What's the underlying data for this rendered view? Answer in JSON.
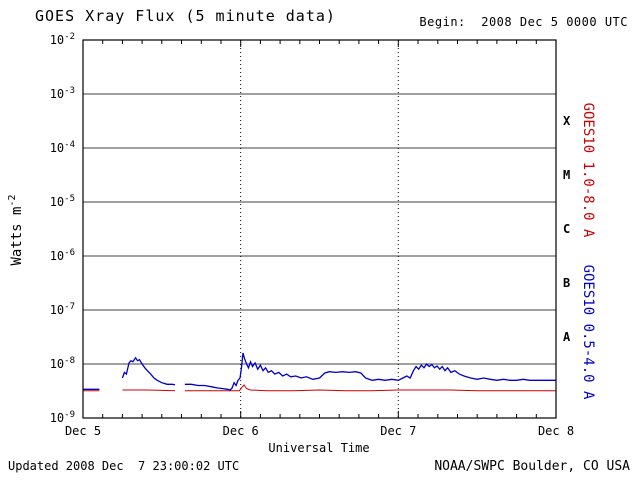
{
  "footer": {
    "updated": "Updated 2008 Dec  7 23:00:02 UTC",
    "credit": "NOAA/SWPC Boulder, CO USA"
  },
  "chart_data": {
    "type": "line",
    "title": "GOES Xray Flux (5 minute data)",
    "begin_label": "Begin:  2008 Dec 5 0000 UTC",
    "xlabel": "Universal Time",
    "ylabel": "Watts m^-2",
    "ylabel_base": "Watts m",
    "ylabel_exp": "-2",
    "x_unit": "hours since 2008 Dec 5 0000 UTC",
    "xlim": [
      0,
      72
    ],
    "ylim": [
      1e-09,
      0.01
    ],
    "y_scale": "log",
    "x_ticks": [
      {
        "hour": 0,
        "label": "Dec 5"
      },
      {
        "hour": 24,
        "label": "Dec 6"
      },
      {
        "hour": 48,
        "label": "Dec 7"
      },
      {
        "hour": 72,
        "label": "Dec 8"
      }
    ],
    "x_minor_tick_hours": 3,
    "y_ticks": [
      {
        "value": 0.01,
        "base": "10",
        "exp": "-2",
        "label": "10^-2"
      },
      {
        "value": 0.001,
        "base": "10",
        "exp": "-3",
        "label": "10^-3"
      },
      {
        "value": 0.0001,
        "base": "10",
        "exp": "-4",
        "label": "10^-4"
      },
      {
        "value": 1e-05,
        "base": "10",
        "exp": "-5",
        "label": "10^-5"
      },
      {
        "value": 1e-06,
        "base": "10",
        "exp": "-6",
        "label": "10^-6"
      },
      {
        "value": 1e-07,
        "base": "10",
        "exp": "-7",
        "label": "10^-7"
      },
      {
        "value": 1e-08,
        "base": "10",
        "exp": "-8",
        "label": "10^-8"
      },
      {
        "value": 1e-09,
        "base": "10",
        "exp": "-9",
        "label": "10^-9"
      }
    ],
    "gridlines_y": [
      0.001,
      0.0001,
      1e-05,
      1e-06,
      1e-07,
      1e-08
    ],
    "gridlines_x_dotted": [
      24,
      48
    ],
    "flare_classes": [
      {
        "label": "X",
        "value": 0.000316
      },
      {
        "label": "M",
        "value": 3.16e-05
      },
      {
        "label": "C",
        "value": 3.16e-06
      },
      {
        "label": "B",
        "value": 3.16e-07
      },
      {
        "label": "A",
        "value": 3.16e-08
      }
    ],
    "series": [
      {
        "name": "GOES10 1.0-8.0 A",
        "color": "#cc0000",
        "segments": [
          [
            [
              0,
              3.2e-09
            ],
            [
              2.5,
              3.2e-09
            ]
          ],
          [
            [
              6,
              3.3e-09
            ],
            [
              10,
              3.3e-09
            ],
            [
              14,
              3.2e-09
            ]
          ],
          [
            [
              15.5,
              3.2e-09
            ],
            [
              20,
              3.2e-09
            ],
            [
              23.8,
              3.2e-09
            ],
            [
              24.2,
              3.7e-09
            ],
            [
              24.5,
              4.1e-09
            ],
            [
              24.9,
              3.5e-09
            ],
            [
              25.5,
              3.3e-09
            ],
            [
              28,
              3.2e-09
            ],
            [
              32,
              3.2e-09
            ],
            [
              36,
              3.3e-09
            ],
            [
              40,
              3.2e-09
            ],
            [
              44,
              3.2e-09
            ],
            [
              48,
              3.3e-09
            ],
            [
              52,
              3.3e-09
            ],
            [
              56,
              3.3e-09
            ],
            [
              60,
              3.2e-09
            ],
            [
              64,
              3.2e-09
            ],
            [
              68,
              3.2e-09
            ],
            [
              72,
              3.2e-09
            ]
          ]
        ]
      },
      {
        "name": "GOES10 0.5-4.0 A",
        "color": "#0000cc",
        "segments": [
          [
            [
              0,
              3.4e-09
            ],
            [
              2.5,
              3.4e-09
            ]
          ],
          [
            [
              6,
              5.5e-09
            ],
            [
              6.3,
              7e-09
            ],
            [
              6.6,
              6.5e-09
            ],
            [
              7.0,
              1.05e-08
            ],
            [
              7.3,
              1.15e-08
            ],
            [
              7.6,
              1.1e-08
            ],
            [
              8.0,
              1.3e-08
            ],
            [
              8.3,
              1.15e-08
            ],
            [
              8.6,
              1.2e-08
            ],
            [
              9.0,
              1e-08
            ],
            [
              9.4,
              8.5e-09
            ],
            [
              9.8,
              7.5e-09
            ],
            [
              10.3,
              6.5e-09
            ],
            [
              10.8,
              5.5e-09
            ],
            [
              11.3,
              5e-09
            ],
            [
              12,
              4.5e-09
            ],
            [
              12.8,
              4.2e-09
            ],
            [
              13.6,
              4.2e-09
            ],
            [
              14,
              4.1e-09
            ]
          ],
          [
            [
              15.5,
              4.2e-09
            ],
            [
              16.5,
              4.2e-09
            ],
            [
              17.5,
              4e-09
            ],
            [
              18.5,
              4e-09
            ],
            [
              19.5,
              3.8e-09
            ],
            [
              20.5,
              3.6e-09
            ],
            [
              21.3,
              3.5e-09
            ],
            [
              22.0,
              3.4e-09
            ],
            [
              22.4,
              3.3e-09
            ],
            [
              22.7,
              3.6e-09
            ],
            [
              23.0,
              4.5e-09
            ],
            [
              23.3,
              4e-09
            ],
            [
              23.6,
              5e-09
            ],
            [
              23.9,
              5.5e-09
            ],
            [
              24.1,
              8e-09
            ],
            [
              24.35,
              1.6e-08
            ],
            [
              24.6,
              1.25e-08
            ],
            [
              24.9,
              1e-08
            ],
            [
              25.2,
              8.5e-09
            ],
            [
              25.5,
              1.1e-08
            ],
            [
              25.8,
              9e-09
            ],
            [
              26.2,
              1.05e-08
            ],
            [
              26.6,
              8e-09
            ],
            [
              27.0,
              9.5e-09
            ],
            [
              27.4,
              7.5e-09
            ],
            [
              27.8,
              8.5e-09
            ],
            [
              28.2,
              7e-09
            ],
            [
              28.7,
              7.5e-09
            ],
            [
              29.2,
              6.5e-09
            ],
            [
              29.8,
              7e-09
            ],
            [
              30.4,
              6e-09
            ],
            [
              31.0,
              6.5e-09
            ],
            [
              31.6,
              5.8e-09
            ],
            [
              32.4,
              6e-09
            ],
            [
              33.2,
              5.5e-09
            ],
            [
              34.0,
              5.8e-09
            ],
            [
              35.0,
              5.2e-09
            ],
            [
              36.0,
              5.5e-09
            ],
            [
              36.8,
              6.8e-09
            ],
            [
              37.5,
              7.2e-09
            ],
            [
              38.5,
              7e-09
            ],
            [
              39.5,
              7.2e-09
            ],
            [
              40.5,
              7e-09
            ],
            [
              41.5,
              7.2e-09
            ],
            [
              42.3,
              6.8e-09
            ],
            [
              43.0,
              5.5e-09
            ],
            [
              44.0,
              5e-09
            ],
            [
              45.0,
              5.2e-09
            ],
            [
              46.0,
              5e-09
            ],
            [
              47.0,
              5.2e-09
            ],
            [
              48.0,
              5e-09
            ],
            [
              48.7,
              5.5e-09
            ],
            [
              49.3,
              6e-09
            ],
            [
              49.8,
              5.5e-09
            ],
            [
              50.3,
              7.5e-09
            ],
            [
              50.7,
              9e-09
            ],
            [
              51.1,
              8e-09
            ],
            [
              51.5,
              9.5e-09
            ],
            [
              51.9,
              8.5e-09
            ],
            [
              52.3,
              1e-08
            ],
            [
              52.7,
              9e-09
            ],
            [
              53.1,
              9.8e-09
            ],
            [
              53.5,
              8.5e-09
            ],
            [
              53.9,
              9.2e-09
            ],
            [
              54.3,
              8e-09
            ],
            [
              54.7,
              9e-09
            ],
            [
              55.1,
              7.5e-09
            ],
            [
              55.5,
              8.5e-09
            ],
            [
              56.0,
              7e-09
            ],
            [
              56.6,
              7.5e-09
            ],
            [
              57.3,
              6.5e-09
            ],
            [
              58.0,
              6e-09
            ],
            [
              59.0,
              5.5e-09
            ],
            [
              60.0,
              5.2e-09
            ],
            [
              61.0,
              5.5e-09
            ],
            [
              62.0,
              5.2e-09
            ],
            [
              63.0,
              5e-09
            ],
            [
              64.0,
              5.2e-09
            ],
            [
              65.0,
              5e-09
            ],
            [
              66.0,
              5e-09
            ],
            [
              67.0,
              5.2e-09
            ],
            [
              68.0,
              5e-09
            ],
            [
              69.0,
              5e-09
            ],
            [
              70.0,
              5e-09
            ],
            [
              71.0,
              5e-09
            ],
            [
              72.0,
              5e-09
            ]
          ]
        ]
      }
    ]
  }
}
